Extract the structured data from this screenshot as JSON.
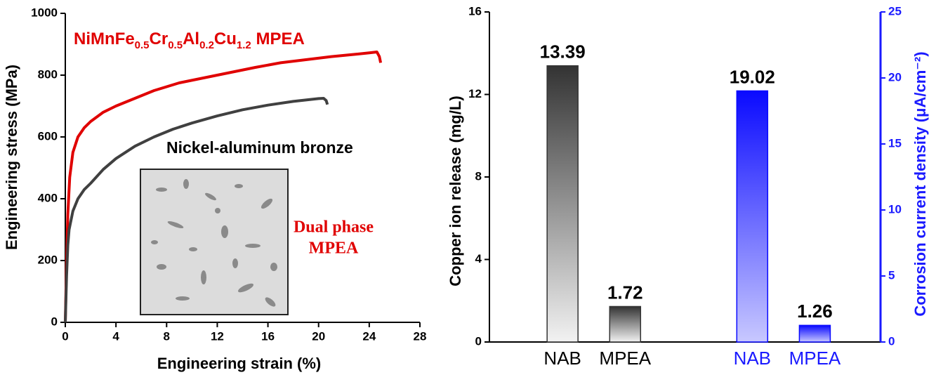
{
  "chart_data": [
    {
      "type": "line",
      "xlabel": "Engineering strain (%)",
      "ylabel": "Engineering stress (MPa)",
      "xlim": [
        0,
        28
      ],
      "xticks": [
        0,
        4,
        8,
        12,
        16,
        20,
        24,
        28
      ],
      "ylim": [
        0,
        1000
      ],
      "yticks": [
        0,
        200,
        400,
        600,
        800,
        1000
      ],
      "series": [
        {
          "name": "NiMnFe0.5Cr0.5Al0.2Cu1.2 MPEA",
          "color": "#e00000",
          "x": [
            0,
            0.1,
            0.2,
            0.35,
            0.6,
            1,
            1.5,
            2,
            3,
            4,
            5.5,
            7,
            9,
            12,
            15,
            17,
            19,
            21,
            23,
            24,
            24.6,
            24.8,
            24.9
          ],
          "values": [
            0,
            200,
            350,
            470,
            550,
            600,
            630,
            650,
            680,
            700,
            725,
            750,
            775,
            800,
            825,
            840,
            850,
            860,
            868,
            872,
            875,
            860,
            840
          ]
        },
        {
          "name": "Nickel-aluminum bronze",
          "color": "#404040",
          "x": [
            0,
            0.1,
            0.2,
            0.3,
            0.6,
            1,
            1.5,
            2,
            3,
            4,
            5.5,
            7,
            8.5,
            10,
            12,
            14,
            16,
            18,
            20,
            20.4,
            20.6,
            20.7
          ],
          "values": [
            0,
            150,
            250,
            300,
            360,
            400,
            430,
            450,
            495,
            530,
            570,
            600,
            625,
            645,
            668,
            688,
            703,
            715,
            724,
            725,
            718,
            705
          ]
        }
      ],
      "annotation": [
        "Dual phase",
        "MPEA"
      ]
    },
    {
      "type": "bar",
      "ylabel": "Copper ion release (mg/L)",
      "y2label": "Corrosion current density (μA/cm⁻²)",
      "categories": [
        "NAB",
        "MPEA",
        "NAB",
        "MPEA"
      ],
      "category_colors": [
        "#000000",
        "#000000",
        "#1a1aff",
        "#1a1aff"
      ],
      "ylim": [
        0,
        16
      ],
      "yticks": [
        0,
        4,
        8,
        12,
        16
      ],
      "y2lim": [
        0,
        25
      ],
      "y2ticks": [
        0,
        5,
        10,
        15,
        20,
        25
      ],
      "series": [
        {
          "color": "#333333",
          "values": [
            13.39,
            1.72,
            null,
            null
          ]
        },
        {
          "color": "#0a0aff",
          "axis": "y2",
          "values": [
            null,
            null,
            19.02,
            1.26
          ]
        }
      ]
    }
  ]
}
